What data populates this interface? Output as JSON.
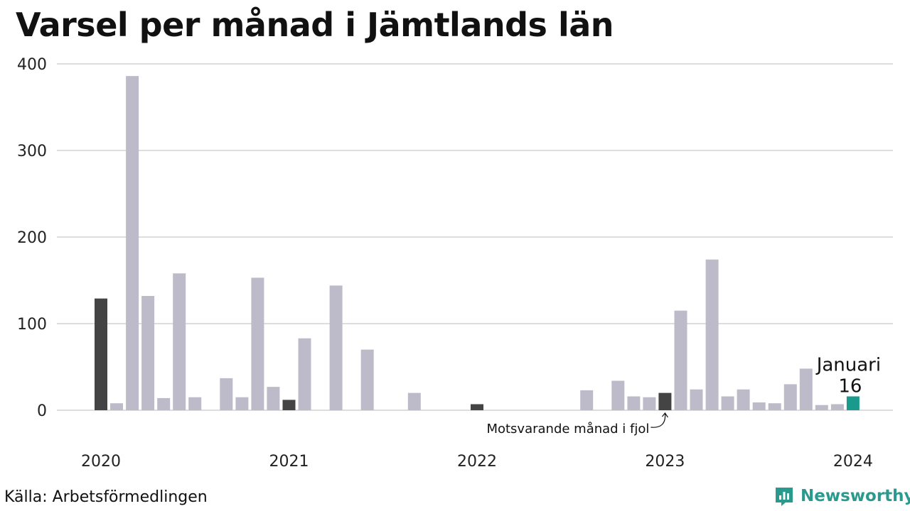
{
  "title": "Varsel per månad i Jämtlands län",
  "source": "Källa: Arbetsförmedlingen",
  "brand": "Newsworthy",
  "colors": {
    "bar": "#bdbbc9",
    "same_month": "#444444",
    "current": "#1a9a8c",
    "grid": "#dddddd",
    "brand": "#2b9a8e"
  },
  "chart_data": {
    "type": "bar",
    "title": "Varsel per månad i Jämtlands län",
    "xlabel": "",
    "ylabel": "",
    "ylim": [
      0,
      400
    ],
    "yticks": [
      0,
      100,
      200,
      300,
      400
    ],
    "grid": true,
    "year_labels": [
      {
        "label": "2020",
        "index": 0
      },
      {
        "label": "2021",
        "index": 12
      },
      {
        "label": "2022",
        "index": 24
      },
      {
        "label": "2023",
        "index": 36
      },
      {
        "label": "2024",
        "index": 48
      }
    ],
    "categories": [
      "2020-01",
      "2020-02",
      "2020-03",
      "2020-04",
      "2020-05",
      "2020-06",
      "2020-07",
      "2020-08",
      "2020-09",
      "2020-10",
      "2020-11",
      "2020-12",
      "2021-01",
      "2021-02",
      "2021-03",
      "2021-04",
      "2021-05",
      "2021-06",
      "2021-07",
      "2021-08",
      "2021-09",
      "2021-10",
      "2021-11",
      "2021-12",
      "2022-01",
      "2022-02",
      "2022-03",
      "2022-04",
      "2022-05",
      "2022-06",
      "2022-07",
      "2022-08",
      "2022-09",
      "2022-10",
      "2022-11",
      "2022-12",
      "2023-01",
      "2023-02",
      "2023-03",
      "2023-04",
      "2023-05",
      "2023-06",
      "2023-07",
      "2023-08",
      "2023-09",
      "2023-10",
      "2023-11",
      "2023-12",
      "2024-01"
    ],
    "values": [
      129,
      8,
      386,
      132,
      14,
      158,
      15,
      0,
      37,
      15,
      153,
      27,
      12,
      83,
      0,
      144,
      0,
      70,
      0,
      0,
      20,
      0,
      0,
      0,
      7,
      0,
      0,
      0,
      0,
      0,
      0,
      23,
      0,
      34,
      16,
      15,
      20,
      115,
      24,
      174,
      16,
      24,
      9,
      8,
      30,
      48,
      6,
      7,
      16
    ],
    "same_month_indices": [
      0,
      12,
      24,
      36
    ],
    "current_index": 48,
    "annotations": {
      "same_month_label": "Motsvarande månad i fjol",
      "current_month_label": "Januari",
      "current_value_label": "16"
    }
  }
}
